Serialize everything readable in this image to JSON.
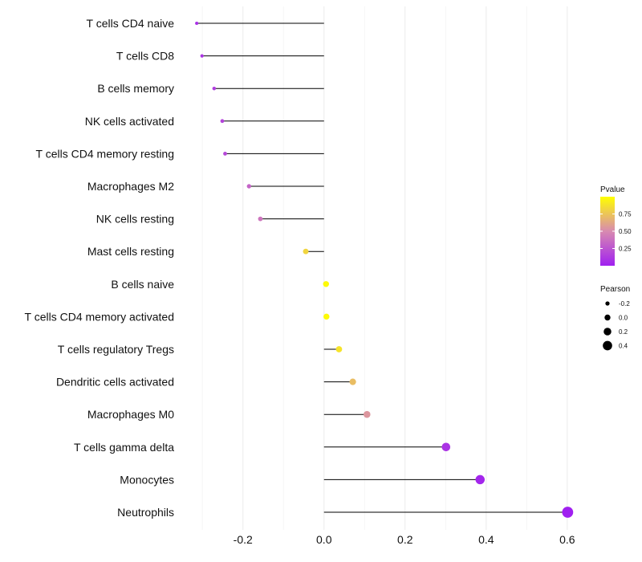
{
  "chart_data": {
    "type": "lollipop",
    "categories": [
      "T cells CD4 naive",
      "T cells CD8",
      "B cells memory",
      "NK cells activated",
      "T cells CD4 memory resting",
      "Macrophages M2",
      "NK cells resting",
      "Mast cells resting",
      "B cells naive",
      "T cells CD4 memory activated",
      "T cells regulatory  Tregs ",
      "Dendritic cells activated",
      "Macrophages M0",
      "T cells gamma delta",
      "Monocytes",
      "Neutrophils"
    ],
    "values": [
      -0.314,
      -0.301,
      -0.271,
      -0.251,
      -0.244,
      -0.185,
      -0.157,
      -0.045,
      0.005,
      0.006,
      0.037,
      0.071,
      0.106,
      0.301,
      0.385,
      0.601
    ],
    "pvalues": [
      0.08,
      0.1,
      0.14,
      0.17,
      0.19,
      0.32,
      0.4,
      0.82,
      0.98,
      0.98,
      0.88,
      0.72,
      0.55,
      0.09,
      0.03,
      0.001
    ],
    "xlim": [
      -0.34,
      0.63
    ],
    "xticks": [
      -0.2,
      0.0,
      0.2,
      0.4,
      0.6
    ],
    "xtick_labels": [
      "-0.2",
      "0.0",
      "0.2",
      "0.4",
      "0.6"
    ],
    "color_legend": {
      "title": "Pvalue",
      "ticks": [
        0.25,
        0.5,
        0.75
      ],
      "tick_labels": [
        "0.25",
        "0.50",
        "0.75"
      ],
      "range": [
        0.0,
        1.0
      ],
      "low_color": "#a020f0",
      "mid_color": "#d88ab0",
      "high_color": "#ffff00"
    },
    "size_legend": {
      "title": "Pearson",
      "values": [
        -0.2,
        0.0,
        0.2,
        0.4
      ],
      "labels": [
        "-0.2",
        "0.0",
        "0.2",
        "0.4"
      ]
    }
  }
}
